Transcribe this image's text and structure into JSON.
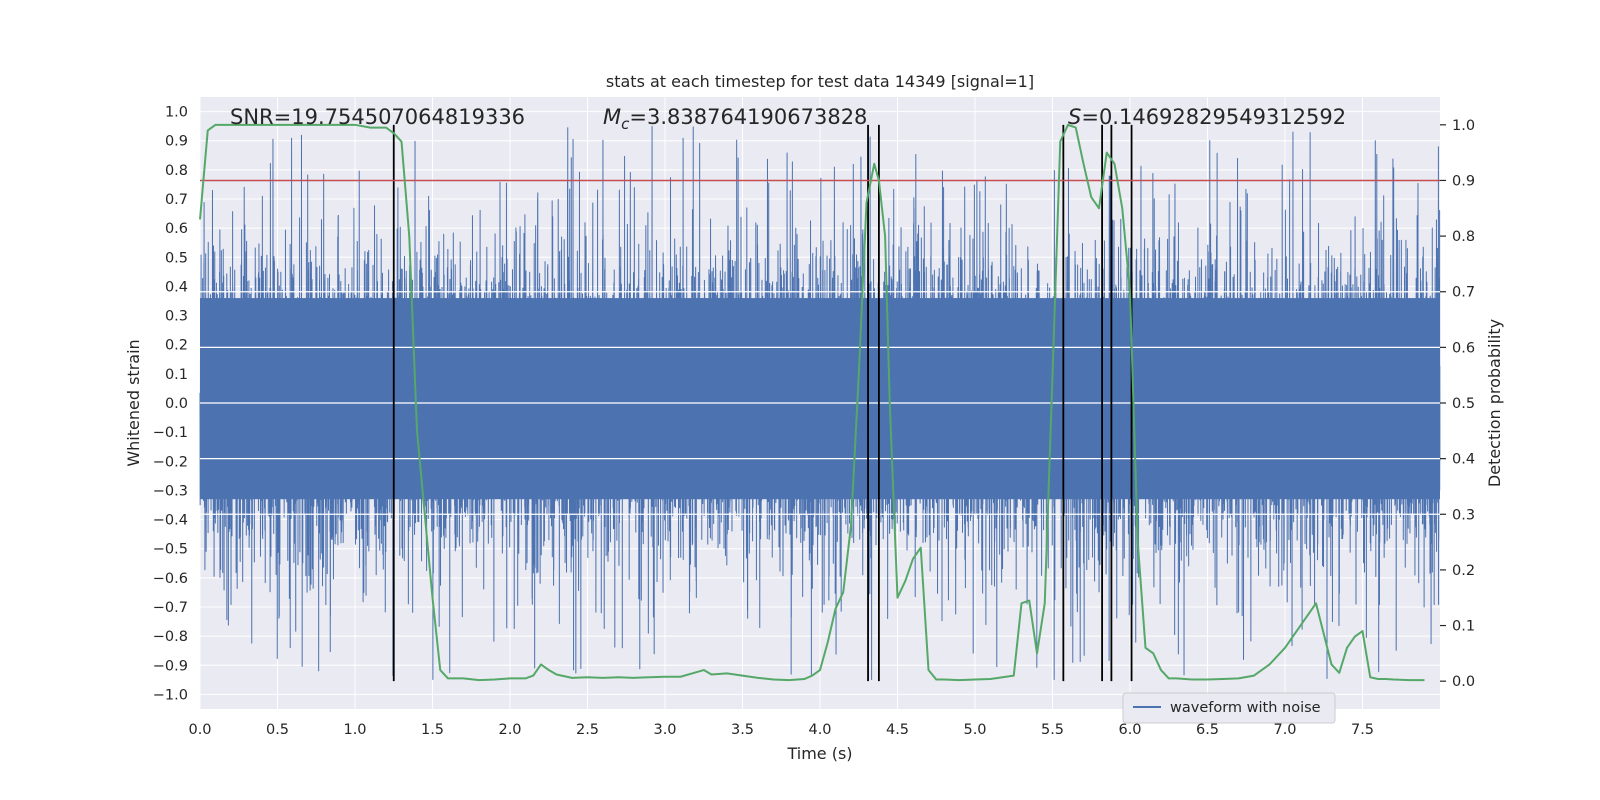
{
  "chart_data": {
    "type": "line",
    "title": "stats at each timestep for test data 14349 [signal=1]",
    "xlabel": "Time (s)",
    "ylabel": "Whitened strain",
    "ylabel_right": "Detection probability",
    "xlim": [
      0.0,
      8.0
    ],
    "ylim": [
      -1.05,
      1.05
    ],
    "ylim_right": [
      -0.05,
      1.05
    ],
    "x_ticks": [
      0.0,
      0.5,
      1.0,
      1.5,
      2.0,
      2.5,
      3.0,
      3.5,
      4.0,
      4.5,
      5.0,
      5.5,
      6.0,
      6.5,
      7.0,
      7.5
    ],
    "x_tick_labels": [
      "0.0",
      "0.5",
      "1.0",
      "1.5",
      "2.0",
      "2.5",
      "3.0",
      "3.5",
      "4.0",
      "4.5",
      "5.0",
      "5.5",
      "6.0",
      "6.5",
      "7.0",
      "7.5"
    ],
    "y_ticks": [
      -1.0,
      -0.9,
      -0.8,
      -0.7,
      -0.6,
      -0.5,
      -0.4,
      -0.3,
      -0.2,
      -0.1,
      0.0,
      0.1,
      0.2,
      0.3,
      0.4,
      0.5,
      0.6,
      0.7,
      0.8,
      0.9,
      1.0
    ],
    "y_tick_labels": [
      "−1.0",
      "−0.9",
      "−0.8",
      "−0.7",
      "−0.6",
      "−0.5",
      "−0.4",
      "−0.3",
      "−0.2",
      "−0.1",
      "0.0",
      "0.1",
      "0.2",
      "0.3",
      "0.4",
      "0.5",
      "0.6",
      "0.7",
      "0.8",
      "0.9",
      "1.0"
    ],
    "y_right_ticks": [
      0.0,
      0.1,
      0.2,
      0.3,
      0.4,
      0.5,
      0.6,
      0.7,
      0.8,
      0.9,
      1.0
    ],
    "y_right_tick_labels": [
      "0.0",
      "0.1",
      "0.2",
      "0.3",
      "0.4",
      "0.5",
      "0.6",
      "0.7",
      "0.8",
      "0.9",
      "1.0"
    ],
    "annotations": {
      "snr": "SNR=19.754507064819336",
      "mc_symbol": "M",
      "mc_sub": "c",
      "mc_value": "=3.838764190673828",
      "s_symbol": "S",
      "s_value": "=0.14692829549312592"
    },
    "legend": {
      "entries": [
        "waveform with noise"
      ],
      "placement": "lower-right"
    },
    "threshold": {
      "value": 0.9,
      "axis": "right",
      "color": "#c44e52"
    },
    "vlines": [
      1.25,
      4.31,
      4.38,
      5.57,
      5.82,
      5.88,
      6.01
    ],
    "vline_range_right": [
      0.0,
      1.0
    ],
    "series": [
      {
        "name": "waveform with noise",
        "axis": "left",
        "color": "#4c72b0",
        "kind": "noise",
        "sample_rate": 2048,
        "duration": 8.0,
        "core_amplitude": 0.45,
        "spike_max": 0.95
      },
      {
        "name": "Detection probability",
        "axis": "right",
        "color": "#55a868",
        "x": [
          0.0,
          0.05,
          0.1,
          0.2,
          0.3,
          0.5,
          0.7,
          0.9,
          1.0,
          1.1,
          1.2,
          1.25,
          1.3,
          1.35,
          1.4,
          1.45,
          1.5,
          1.55,
          1.6,
          1.7,
          1.8,
          1.9,
          2.0,
          2.1,
          2.15,
          2.2,
          2.25,
          2.3,
          2.4,
          2.5,
          2.6,
          2.7,
          2.8,
          2.9,
          3.0,
          3.1,
          3.2,
          3.25,
          3.3,
          3.4,
          3.45,
          3.5,
          3.6,
          3.7,
          3.8,
          3.9,
          3.95,
          4.0,
          4.05,
          4.1,
          4.15,
          4.2,
          4.25,
          4.3,
          4.35,
          4.38,
          4.42,
          4.45,
          4.5,
          4.55,
          4.6,
          4.65,
          4.7,
          4.75,
          4.8,
          4.9,
          5.0,
          5.1,
          5.2,
          5.25,
          5.3,
          5.35,
          5.4,
          5.45,
          5.5,
          5.55,
          5.6,
          5.65,
          5.7,
          5.75,
          5.8,
          5.85,
          5.9,
          5.95,
          6.0,
          6.05,
          6.1,
          6.15,
          6.2,
          6.25,
          6.3,
          6.4,
          6.5,
          6.6,
          6.7,
          6.8,
          6.9,
          7.0,
          7.1,
          7.2,
          7.3,
          7.35,
          7.4,
          7.45,
          7.5,
          7.55,
          7.6,
          7.65,
          7.7,
          7.8,
          7.9
        ],
        "values": [
          0.83,
          0.99,
          1.0,
          1.0,
          1.0,
          1.0,
          1.0,
          1.0,
          1.0,
          0.995,
          0.995,
          0.985,
          0.97,
          0.8,
          0.45,
          0.3,
          0.15,
          0.02,
          0.005,
          0.005,
          0.002,
          0.003,
          0.005,
          0.005,
          0.01,
          0.03,
          0.02,
          0.012,
          0.006,
          0.007,
          0.006,
          0.007,
          0.006,
          0.007,
          0.008,
          0.008,
          0.016,
          0.02,
          0.012,
          0.014,
          0.012,
          0.01,
          0.006,
          0.003,
          0.002,
          0.004,
          0.01,
          0.02,
          0.07,
          0.13,
          0.16,
          0.28,
          0.55,
          0.86,
          0.93,
          0.9,
          0.8,
          0.5,
          0.15,
          0.18,
          0.22,
          0.24,
          0.02,
          0.003,
          0.003,
          0.002,
          0.003,
          0.004,
          0.008,
          0.01,
          0.14,
          0.145,
          0.05,
          0.14,
          0.55,
          0.97,
          1.0,
          0.995,
          0.93,
          0.87,
          0.85,
          0.95,
          0.93,
          0.85,
          0.7,
          0.25,
          0.06,
          0.05,
          0.02,
          0.005,
          0.005,
          0.003,
          0.003,
          0.004,
          0.005,
          0.01,
          0.03,
          0.06,
          0.1,
          0.14,
          0.03,
          0.015,
          0.06,
          0.08,
          0.09,
          0.007,
          0.004,
          0.004,
          0.003,
          0.002,
          0.002
        ]
      }
    ]
  }
}
